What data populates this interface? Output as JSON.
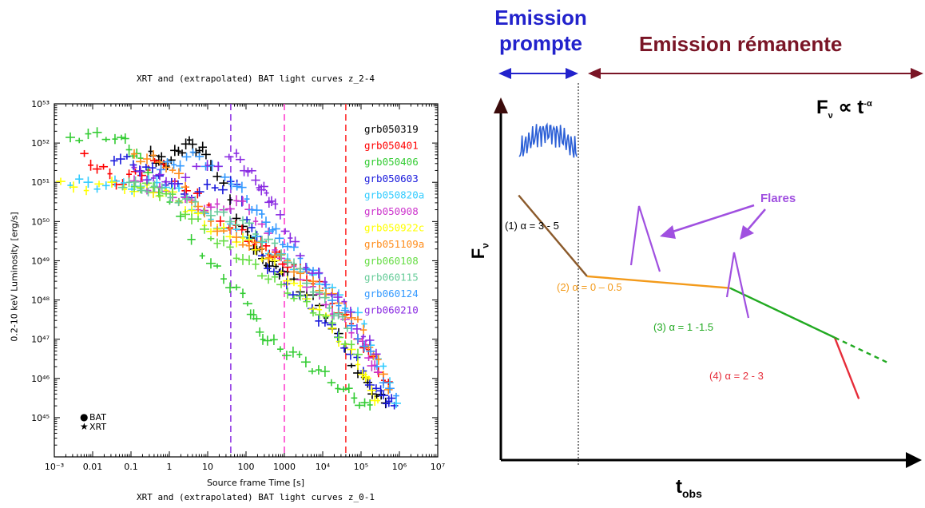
{
  "left_chart": {
    "title": "XRT and (extrapolated) BAT light curves z_2-4",
    "bottom_title": "XRT and (extrapolated) BAT light curves z_0-1",
    "xlabel": "Source frame Time [s]",
    "ylabel": "0.2-10 keV Luminosity [erg/s]",
    "x_ticks": [
      "10⁻³",
      "0.01",
      "0.1",
      "1",
      "10",
      "100",
      "1000",
      "10⁴",
      "10⁵",
      "10⁶",
      "10⁷"
    ],
    "y_ticks": [
      "10⁴⁵",
      "10⁴⁶",
      "10⁴⁷",
      "10⁴⁸",
      "10⁴⁹",
      "10⁵⁰",
      "10⁵¹",
      "10⁵²",
      "10⁵³"
    ],
    "marker_legend": [
      {
        "symbol": "●",
        "label": "BAT"
      },
      {
        "symbol": "★",
        "label": "XRT"
      }
    ]
  },
  "right_diagram": {
    "prompt_label": "Emission prompte",
    "afterglow_label": "Emission rémanente",
    "flares_label": "Flares",
    "powerlaw": {
      "f": "F",
      "sub": "ν",
      "prop": " ∝ t",
      "sup": "-α"
    },
    "axis_y": {
      "main": "F",
      "sub": "ν"
    },
    "axis_x": {
      "main": "t",
      "sub": "obs"
    },
    "segments": [
      {
        "label": "(1) α = 3 - 5",
        "color": "#000000"
      },
      {
        "label": "(2) α = 0 – 0.5",
        "color": "#f39a1a"
      },
      {
        "label": "(3) α = 1 -1.5",
        "color": "#22aa22"
      },
      {
        "label": "(4) α = 2 - 3",
        "color": "#e62d3a"
      }
    ]
  },
  "chart_data": [
    {
      "type": "scatter",
      "title": "XRT and (extrapolated) BAT light curves z_2-4",
      "xlabel": "Source frame Time [s]",
      "ylabel": "0.2-10 keV Luminosity [erg/s]",
      "x_scale": "log",
      "y_scale": "log",
      "xlim": [
        0.001,
        10000000
      ],
      "ylim": [
        1e+44,
        1e+53
      ],
      "grid": false,
      "legend_position": "top-right",
      "vertical_lines": [
        {
          "x": 40,
          "color": "#8a2be2"
        },
        {
          "x": 1000,
          "color": "#ff33cc"
        },
        {
          "x": 40000,
          "color": "#ff2222"
        }
      ],
      "series": [
        {
          "name": "grb050319",
          "color": "#000000",
          "points": [
            [
              0.3,
              5e+51
            ],
            [
              0.8,
              3e+51
            ],
            [
              3,
              1e+52
            ],
            [
              10,
              5e+51
            ],
            [
              100,
              5e+49
            ],
            [
              300,
              1e+49
            ],
            [
              1000,
              5e+48
            ],
            [
              10000,
              6e+47
            ],
            [
              100000,
              1e+46
            ],
            [
              500000,
              2e+45
            ]
          ]
        },
        {
          "name": "grb050401",
          "color": "#ff0000",
          "points": [
            [
              0.005,
              5e+51
            ],
            [
              0.05,
              1e+51
            ],
            [
              0.5,
              3e+51
            ],
            [
              30,
              1e+50
            ],
            [
              300,
              2e+49
            ],
            [
              1000,
              1e+49
            ],
            [
              10000,
              2e+48
            ],
            [
              100000,
              1e+47
            ],
            [
              600000,
              5e+45
            ]
          ]
        },
        {
          "name": "grb050406",
          "color": "#33cc33",
          "points": [
            [
              0.002,
              1.5e+52
            ],
            [
              0.05,
              1.5e+52
            ],
            [
              0.2,
              3e+51
            ],
            [
              10,
              1e+49
            ],
            [
              100,
              1e+48
            ],
            [
              300,
              1e+47
            ],
            [
              3000,
              3e+46
            ],
            [
              30000,
              6e+45
            ],
            [
              200000,
              1.5e+45
            ]
          ]
        },
        {
          "name": "grb050603",
          "color": "#1a1adc",
          "points": [
            [
              0.03,
              5e+51
            ],
            [
              0.3,
              2e+51
            ],
            [
              3,
              5e+50
            ],
            [
              50,
              1e+51
            ],
            [
              300,
              1e+49
            ],
            [
              3000,
              1e+48
            ],
            [
              30000,
              1e+47
            ],
            [
              300000,
              4e+45
            ],
            [
              800000,
              2e+45
            ]
          ]
        },
        {
          "name": "grb050820a",
          "color": "#33ccff",
          "points": [
            [
              0.002,
              1e+51
            ],
            [
              0.05,
              8e+50
            ],
            [
              1,
              1e+51
            ],
            [
              10,
              1e+50
            ],
            [
              100,
              5e+49
            ],
            [
              1000,
              1e+49
            ],
            [
              10000,
              3e+48
            ],
            [
              100000,
              3e+47
            ],
            [
              1000000,
              2e+45
            ]
          ]
        },
        {
          "name": "grb050908",
          "color": "#cc33cc",
          "points": [
            [
              0.1,
              1e+51
            ],
            [
              1,
              5e+50
            ],
            [
              10,
              2e+50
            ],
            [
              100,
              3e+50
            ],
            [
              1000,
              1e+49
            ],
            [
              10000,
              1e+48
            ],
            [
              100000,
              1e+47
            ],
            [
              300000,
              1e+46
            ]
          ]
        },
        {
          "name": "grb050922c",
          "color": "#ffff00",
          "points": [
            [
              0.001,
              8e+50
            ],
            [
              0.1,
              8e+50
            ],
            [
              1,
              5e+50
            ],
            [
              10,
              8e+49
            ],
            [
              100,
              3e+49
            ],
            [
              1000,
              5e+48
            ],
            [
              10000,
              4e+47
            ],
            [
              100000,
              2e+46
            ],
            [
              300000,
              2e+45
            ]
          ]
        },
        {
          "name": "grb051109a",
          "color": "#ff8c1a",
          "points": [
            [
              0.1,
              5e+51
            ],
            [
              1,
              3e+51
            ],
            [
              10,
              1e+50
            ],
            [
              100,
              3e+49
            ],
            [
              1000,
              1e+49
            ],
            [
              10000,
              2e+48
            ],
            [
              100000,
              2e+47
            ],
            [
              600000,
              5e+45
            ]
          ]
        },
        {
          "name": "grb060108",
          "color": "#66dd44",
          "points": [
            [
              0.1,
              1e+51
            ],
            [
              1,
              5e+50
            ],
            [
              10,
              5e+49
            ],
            [
              100,
              1e+49
            ],
            [
              1000,
              2e+48
            ],
            [
              10000,
              4e+47
            ],
            [
              100000,
              3e+46
            ]
          ]
        },
        {
          "name": "grb060115",
          "color": "#66cc99",
          "points": [
            [
              0.05,
              1e+51
            ],
            [
              0.5,
              6e+50
            ],
            [
              10,
              2e+50
            ],
            [
              100,
              8e+49
            ],
            [
              1000,
              1.5e+49
            ],
            [
              10000,
              1e+48
            ],
            [
              50000,
              2e+47
            ]
          ]
        },
        {
          "name": "grb060124",
          "color": "#3399ff",
          "points": [
            [
              0.5,
              2e+51
            ],
            [
              5,
              5e+51
            ],
            [
              50,
              1e+51
            ],
            [
              300,
              1e+50
            ],
            [
              1000,
              3e+49
            ],
            [
              10000,
              3e+48
            ],
            [
              100000,
              1e+47
            ],
            [
              1000000,
              2e+45
            ]
          ]
        },
        {
          "name": "grb060210",
          "color": "#8a2be2",
          "points": [
            [
              0.1,
              2e+51
            ],
            [
              1,
              1e+51
            ],
            [
              50,
              5e+51
            ],
            [
              200,
              1e+51
            ],
            [
              500,
              3e+50
            ],
            [
              3000,
              1e+49
            ],
            [
              30000,
              1e+48
            ],
            [
              300000,
              3e+46
            ]
          ]
        }
      ]
    },
    {
      "type": "line",
      "xlabel": "t_obs",
      "ylabel": "F_ν",
      "grid": false,
      "x_scale": "log",
      "y_scale": "log",
      "series": [
        {
          "name": "(1) α = 3 - 5",
          "color": "#8b5a2b",
          "x": [
            1.0,
            1.5
          ],
          "y": [
            3.0,
            1.2
          ]
        },
        {
          "name": "(2) α = 0 – 0.5",
          "color": "#f39a1a",
          "x": [
            1.5,
            3.5
          ],
          "y": [
            1.2,
            1.05
          ]
        },
        {
          "name": "(3) α = 1 -1.5",
          "color": "#22aa22",
          "x": [
            3.5,
            6.5
          ],
          "y": [
            1.05,
            0.6
          ]
        },
        {
          "name": "(4) α = 2 - 3",
          "color": "#e62d3a",
          "x": [
            6.5,
            7.5
          ],
          "y": [
            0.6,
            0.3
          ]
        }
      ]
    }
  ]
}
